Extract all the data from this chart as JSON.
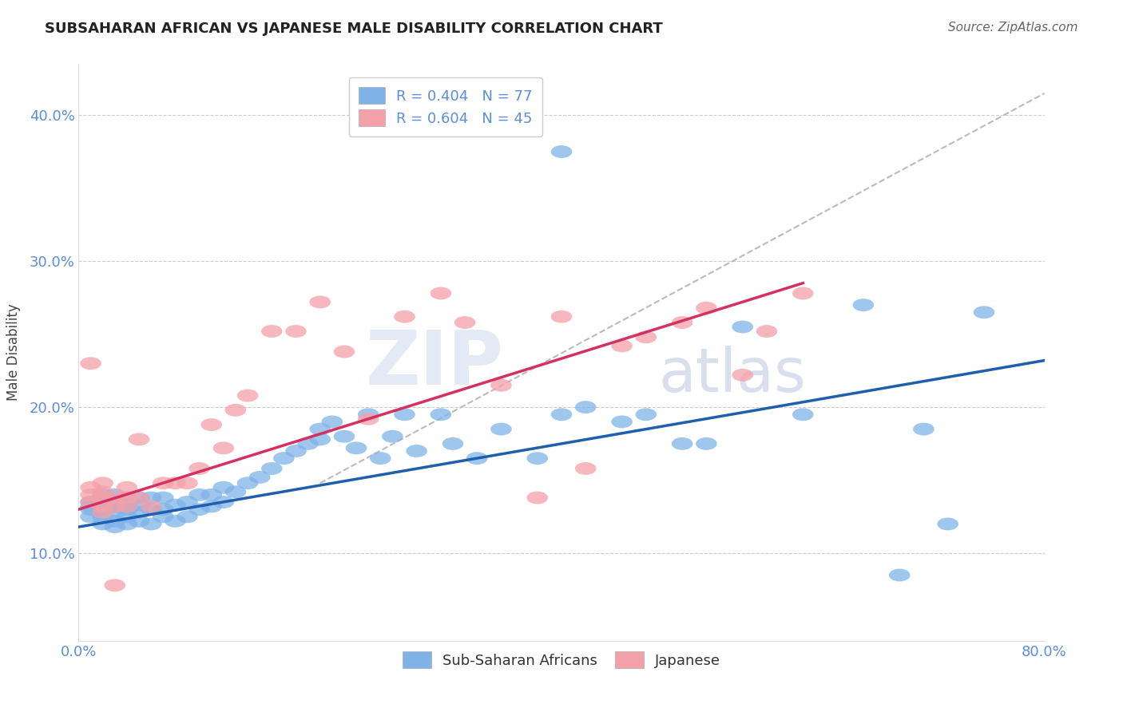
{
  "title": "SUBSAHARAN AFRICAN VS JAPANESE MALE DISABILITY CORRELATION CHART",
  "source": "Source: ZipAtlas.com",
  "ylabel": "Male Disability",
  "xlim": [
    0.0,
    0.8
  ],
  "ylim": [
    0.04,
    0.435
  ],
  "xticks": [
    0.0,
    0.1,
    0.2,
    0.3,
    0.4,
    0.5,
    0.6,
    0.7,
    0.8
  ],
  "yticks_right": [
    0.1,
    0.2,
    0.3,
    0.4
  ],
  "legend_r1": "R = 0.404",
  "legend_n1": "N = 77",
  "legend_r2": "R = 0.604",
  "legend_n2": "N = 45",
  "blue_color": "#7FB3E8",
  "pink_color": "#F4A0A8",
  "trend_blue": "#1F5FAD",
  "trend_pink": "#D63060",
  "grid_color": "#CCCCCC",
  "bg_color": "#FFFFFF",
  "blue_x": [
    0.01,
    0.01,
    0.01,
    0.01,
    0.02,
    0.02,
    0.02,
    0.02,
    0.02,
    0.02,
    0.03,
    0.03,
    0.03,
    0.03,
    0.03,
    0.03,
    0.04,
    0.04,
    0.04,
    0.04,
    0.04,
    0.05,
    0.05,
    0.05,
    0.05,
    0.06,
    0.06,
    0.06,
    0.07,
    0.07,
    0.07,
    0.08,
    0.08,
    0.09,
    0.09,
    0.1,
    0.1,
    0.11,
    0.11,
    0.12,
    0.12,
    0.13,
    0.14,
    0.15,
    0.16,
    0.17,
    0.18,
    0.19,
    0.2,
    0.2,
    0.21,
    0.22,
    0.23,
    0.24,
    0.25,
    0.26,
    0.27,
    0.28,
    0.3,
    0.31,
    0.33,
    0.35,
    0.38,
    0.4,
    0.42,
    0.45,
    0.47,
    0.5,
    0.52,
    0.55,
    0.6,
    0.65,
    0.68,
    0.7,
    0.72,
    0.75,
    0.4
  ],
  "blue_y": [
    0.125,
    0.13,
    0.132,
    0.135,
    0.12,
    0.125,
    0.13,
    0.135,
    0.138,
    0.14,
    0.118,
    0.122,
    0.128,
    0.132,
    0.136,
    0.14,
    0.12,
    0.125,
    0.13,
    0.133,
    0.138,
    0.122,
    0.128,
    0.133,
    0.138,
    0.12,
    0.13,
    0.138,
    0.125,
    0.13,
    0.138,
    0.122,
    0.133,
    0.125,
    0.135,
    0.13,
    0.14,
    0.132,
    0.14,
    0.135,
    0.145,
    0.142,
    0.148,
    0.152,
    0.158,
    0.165,
    0.17,
    0.175,
    0.178,
    0.185,
    0.19,
    0.18,
    0.172,
    0.195,
    0.165,
    0.18,
    0.195,
    0.17,
    0.195,
    0.175,
    0.165,
    0.185,
    0.165,
    0.195,
    0.2,
    0.19,
    0.195,
    0.175,
    0.175,
    0.255,
    0.195,
    0.27,
    0.085,
    0.185,
    0.12,
    0.265,
    0.375
  ],
  "pink_x": [
    0.01,
    0.01,
    0.01,
    0.01,
    0.02,
    0.02,
    0.02,
    0.02,
    0.02,
    0.03,
    0.03,
    0.03,
    0.04,
    0.04,
    0.04,
    0.05,
    0.05,
    0.06,
    0.07,
    0.08,
    0.09,
    0.1,
    0.11,
    0.12,
    0.13,
    0.14,
    0.16,
    0.18,
    0.2,
    0.22,
    0.24,
    0.27,
    0.3,
    0.32,
    0.35,
    0.38,
    0.4,
    0.42,
    0.45,
    0.47,
    0.5,
    0.52,
    0.55,
    0.57,
    0.6
  ],
  "pink_y": [
    0.135,
    0.14,
    0.145,
    0.23,
    0.128,
    0.132,
    0.138,
    0.142,
    0.148,
    0.078,
    0.132,
    0.138,
    0.132,
    0.138,
    0.145,
    0.138,
    0.178,
    0.132,
    0.148,
    0.148,
    0.148,
    0.158,
    0.188,
    0.172,
    0.198,
    0.208,
    0.252,
    0.252,
    0.272,
    0.238,
    0.192,
    0.262,
    0.278,
    0.258,
    0.215,
    0.138,
    0.262,
    0.158,
    0.242,
    0.248,
    0.258,
    0.268,
    0.222,
    0.252,
    0.278
  ],
  "dash_line_x": [
    0.2,
    0.8
  ],
  "dash_line_y": [
    0.148,
    0.415
  ],
  "blue_trend_x": [
    0.0,
    0.8
  ],
  "blue_trend_y": [
    0.118,
    0.232
  ],
  "pink_trend_x": [
    0.0,
    0.6
  ],
  "pink_trend_y": [
    0.13,
    0.285
  ]
}
